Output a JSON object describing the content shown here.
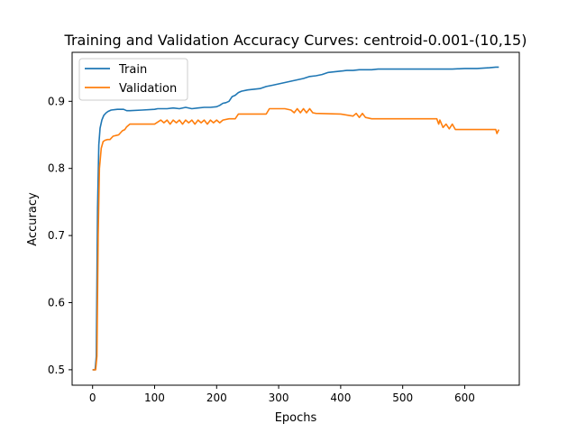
{
  "chart_data": {
    "type": "line",
    "title": "Training and Validation Accuracy Curves: centroid-0.001-(10,15)",
    "xlabel": "Epochs",
    "ylabel": "Accuracy",
    "xlim": [
      -33,
      688
    ],
    "ylim": [
      0.477,
      0.973
    ],
    "xticks": [
      0,
      100,
      200,
      300,
      400,
      500,
      600
    ],
    "yticks": [
      0.5,
      0.6,
      0.7,
      0.8,
      0.9
    ],
    "ytick_labels": [
      "0.5",
      "0.6",
      "0.7",
      "0.8",
      "0.9"
    ],
    "grid": false,
    "legend_position": "top-left",
    "series": [
      {
        "name": "Train",
        "color": "#1f77b4",
        "x": [
          0,
          4,
          6,
          8,
          10,
          12,
          15,
          18,
          22,
          25,
          30,
          40,
          50,
          55,
          60,
          80,
          100,
          105,
          110,
          120,
          130,
          140,
          150,
          160,
          170,
          180,
          190,
          200,
          205,
          210,
          215,
          220,
          225,
          230,
          235,
          240,
          250,
          260,
          270,
          280,
          290,
          300,
          310,
          320,
          330,
          340,
          350,
          360,
          370,
          380,
          390,
          400,
          410,
          420,
          430,
          440,
          450,
          460,
          470,
          480,
          500,
          520,
          540,
          560,
          580,
          600,
          620,
          640,
          650,
          655
        ],
        "y": [
          0.5,
          0.5,
          0.52,
          0.74,
          0.835,
          0.86,
          0.872,
          0.879,
          0.883,
          0.885,
          0.887,
          0.888,
          0.888,
          0.886,
          0.886,
          0.887,
          0.888,
          0.889,
          0.889,
          0.889,
          0.89,
          0.889,
          0.891,
          0.889,
          0.89,
          0.891,
          0.891,
          0.892,
          0.894,
          0.897,
          0.898,
          0.9,
          0.907,
          0.909,
          0.913,
          0.915,
          0.917,
          0.918,
          0.919,
          0.922,
          0.924,
          0.926,
          0.928,
          0.93,
          0.932,
          0.934,
          0.937,
          0.938,
          0.94,
          0.943,
          0.944,
          0.945,
          0.946,
          0.946,
          0.947,
          0.947,
          0.947,
          0.948,
          0.948,
          0.948,
          0.948,
          0.948,
          0.948,
          0.948,
          0.948,
          0.949,
          0.949,
          0.95,
          0.951,
          0.951
        ]
      },
      {
        "name": "Validation",
        "color": "#ff7f0e",
        "x": [
          0,
          5,
          7,
          9,
          11,
          14,
          17,
          20,
          24,
          28,
          33,
          37,
          42,
          48,
          52,
          55,
          60,
          100,
          110,
          115,
          120,
          125,
          130,
          135,
          140,
          145,
          150,
          155,
          160,
          165,
          170,
          175,
          180,
          185,
          190,
          195,
          200,
          205,
          210,
          220,
          230,
          235,
          280,
          285,
          300,
          310,
          320,
          325,
          330,
          335,
          340,
          345,
          350,
          355,
          360,
          400,
          420,
          425,
          430,
          435,
          440,
          450,
          500,
          555,
          558,
          560,
          565,
          570,
          575,
          580,
          585,
          590,
          600,
          620,
          640,
          650,
          652,
          655
        ],
        "y": [
          0.5,
          0.5,
          0.52,
          0.7,
          0.8,
          0.83,
          0.84,
          0.842,
          0.843,
          0.843,
          0.848,
          0.849,
          0.85,
          0.856,
          0.858,
          0.862,
          0.866,
          0.866,
          0.872,
          0.868,
          0.872,
          0.866,
          0.872,
          0.868,
          0.872,
          0.866,
          0.872,
          0.868,
          0.872,
          0.866,
          0.872,
          0.868,
          0.872,
          0.866,
          0.872,
          0.868,
          0.872,
          0.868,
          0.872,
          0.874,
          0.874,
          0.881,
          0.881,
          0.889,
          0.889,
          0.889,
          0.887,
          0.883,
          0.889,
          0.883,
          0.889,
          0.883,
          0.889,
          0.883,
          0.882,
          0.881,
          0.878,
          0.882,
          0.876,
          0.882,
          0.876,
          0.874,
          0.874,
          0.874,
          0.866,
          0.872,
          0.861,
          0.866,
          0.859,
          0.866,
          0.858,
          0.858,
          0.858,
          0.858,
          0.858,
          0.858,
          0.852,
          0.858
        ]
      }
    ]
  }
}
